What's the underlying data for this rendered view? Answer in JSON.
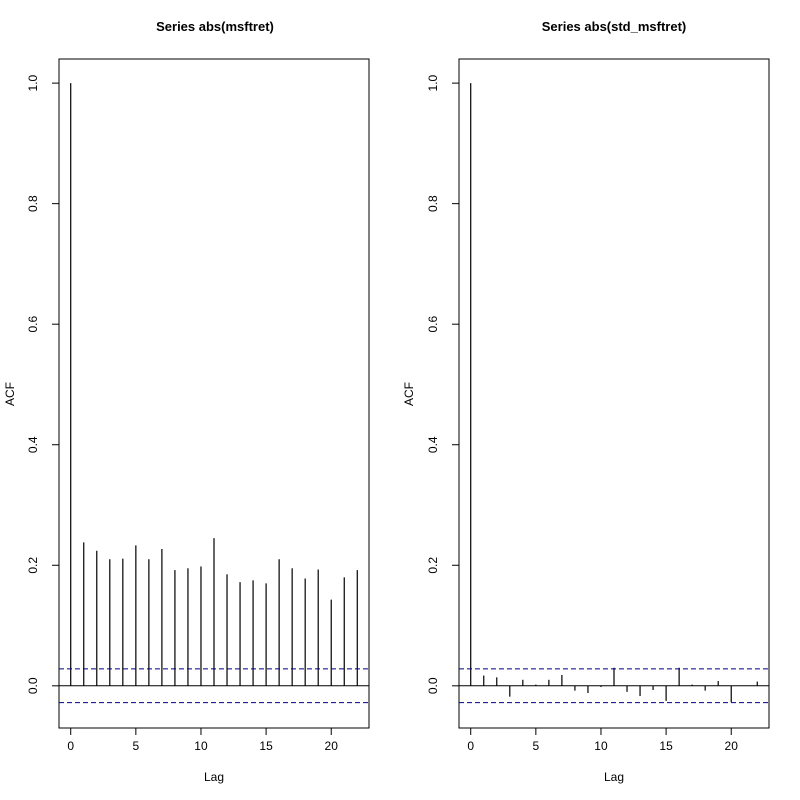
{
  "chart_data": [
    {
      "type": "bar",
      "title": "Series  abs(msftret)",
      "xlabel": "Lag",
      "ylabel": "ACF",
      "xlim": [
        -0.9,
        22.9
      ],
      "ylim": [
        -0.07,
        1.04
      ],
      "xticks": [
        0,
        5,
        10,
        15,
        20
      ],
      "yticks": [
        0.0,
        0.2,
        0.4,
        0.6,
        0.8,
        1.0
      ],
      "conf_limit": 0.028,
      "conf_color": "#000080",
      "lags": [
        0,
        1,
        2,
        3,
        4,
        5,
        6,
        7,
        8,
        9,
        10,
        11,
        12,
        13,
        14,
        15,
        16,
        17,
        18,
        19,
        20,
        21,
        22
      ],
      "acf": [
        1.0,
        0.238,
        0.224,
        0.21,
        0.211,
        0.233,
        0.21,
        0.227,
        0.192,
        0.195,
        0.198,
        0.245,
        0.185,
        0.172,
        0.175,
        0.17,
        0.21,
        0.195,
        0.178,
        0.193,
        0.143,
        0.18,
        0.192
      ]
    },
    {
      "type": "bar",
      "title": "Series  abs(std_msftret)",
      "xlabel": "Lag",
      "ylabel": "ACF",
      "xlim": [
        -0.9,
        22.9
      ],
      "ylim": [
        -0.07,
        1.04
      ],
      "xticks": [
        0,
        5,
        10,
        15,
        20
      ],
      "yticks": [
        0.0,
        0.2,
        0.4,
        0.6,
        0.8,
        1.0
      ],
      "conf_limit": 0.028,
      "conf_color": "#000080",
      "lags": [
        0,
        1,
        2,
        3,
        4,
        5,
        6,
        7,
        8,
        9,
        10,
        11,
        12,
        13,
        14,
        15,
        16,
        17,
        18,
        19,
        20,
        21,
        22
      ],
      "acf": [
        1.0,
        0.017,
        0.014,
        -0.018,
        0.01,
        0.002,
        0.01,
        0.018,
        -0.008,
        -0.012,
        -0.002,
        0.03,
        -0.01,
        -0.017,
        -0.007,
        -0.025,
        0.03,
        0.002,
        -0.008,
        0.008,
        -0.027,
        0.0,
        0.007
      ]
    }
  ]
}
